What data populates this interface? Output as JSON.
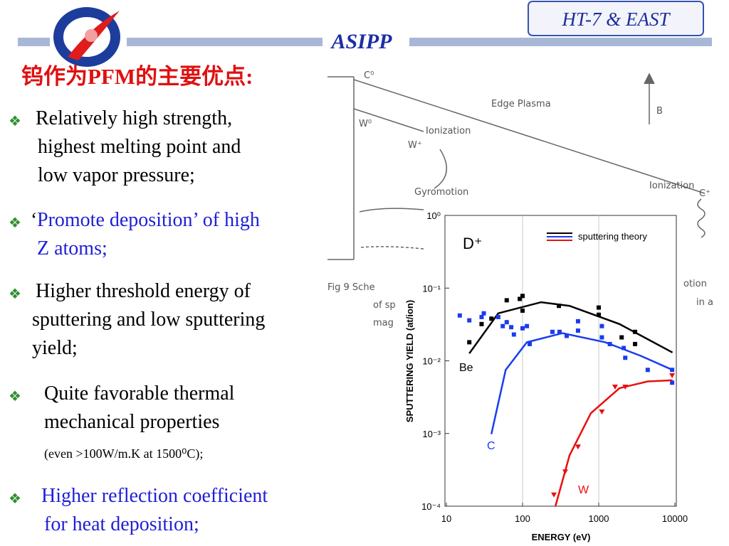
{
  "header": {
    "badge": "HT-7 & EAST",
    "title": "ASIPP",
    "heading": "钨作为PFM的主要优点:"
  },
  "bullets": [
    {
      "lines": [
        "Relatively high strength,",
        "highest melting point and",
        "low vapor pressure;"
      ],
      "color": "#000000"
    },
    {
      "prefix": "‘",
      "lines": [
        "Promote deposition’ of high",
        "Z atoms;"
      ],
      "color": "#1f1fd6"
    },
    {
      "lines": [
        "Higher  threshold energy of",
        "sputtering and low sputtering",
        "yield;"
      ],
      "color": "#000000"
    },
    {
      "lines": [
        "Quite favorable thermal",
        "mechanical properties"
      ],
      "note": "(even >100W/m.K at 1500⁰C);",
      "color": "#000000"
    },
    {
      "lines": [
        "Higher reflection coefficient",
        "for heat deposition;"
      ],
      "color": "#1f1fd6"
    }
  ],
  "background_figure": {
    "labels": [
      "C⁰",
      "W⁰",
      "Edge Plasma",
      "Ionization",
      "W⁺",
      "B",
      "Gyromotion",
      "Ionization",
      "C⁺",
      "Fig 9  Sche",
      "of sp",
      "mag",
      "otion",
      "in a"
    ]
  },
  "chart_data": {
    "type": "scatter",
    "title": "D⁺",
    "xlabel": "ENERGY (eV)",
    "ylabel": "SPUTTERING YIELD (at/ion)",
    "xlim": [
      10,
      10000
    ],
    "ylim": [
      0.0001,
      1
    ],
    "xscale": "log",
    "yscale": "log",
    "xticks": [
      10,
      100,
      1000,
      10000
    ],
    "yticks": [
      {
        "value": 1,
        "label": "10⁰"
      },
      {
        "value": 0.1,
        "label": "10⁻¹"
      },
      {
        "value": 0.01,
        "label": "10⁻²"
      },
      {
        "value": 0.001,
        "label": "10⁻³"
      },
      {
        "value": 0.0001,
        "label": "10⁻⁴"
      }
    ],
    "xgrid": true,
    "legend_label": "sputtering theory",
    "legend_position": "upper right",
    "series": [
      {
        "name": "Be",
        "color": "#000000",
        "marker": "square",
        "x": [
          20,
          29,
          39,
          62,
          92,
          100,
          100,
          300,
          1000,
          1000,
          2000,
          3000,
          3000
        ],
        "values": [
          0.018,
          0.032,
          0.038,
          0.068,
          0.071,
          0.078,
          0.049,
          0.057,
          0.054,
          0.043,
          0.021,
          0.025,
          0.017
        ],
        "theory_x": [
          20,
          48,
          175,
          414,
          1870,
          9300
        ],
        "theory_values": [
          0.0126,
          0.045,
          0.064,
          0.057,
          0.032,
          0.013
        ]
      },
      {
        "name": "C",
        "color": "#1a3cf0",
        "marker": "square",
        "x": [
          15,
          20,
          29,
          31,
          48,
          55,
          62,
          71,
          77,
          100,
          114,
          124,
          247,
          306,
          380,
          535,
          535,
          1100,
          1100,
          1400,
          2130,
          2230,
          4400,
          9200,
          9200
        ],
        "values": [
          0.042,
          0.036,
          0.04,
          0.045,
          0.04,
          0.03,
          0.034,
          0.029,
          0.023,
          0.028,
          0.03,
          0.017,
          0.025,
          0.025,
          0.022,
          0.035,
          0.026,
          0.03,
          0.021,
          0.017,
          0.015,
          0.011,
          0.0075,
          0.0075,
          0.005
        ],
        "theory_x": [
          39,
          60,
          114,
          335,
          1220,
          3560,
          9300
        ],
        "theory_values": [
          0.00098,
          0.0075,
          0.018,
          0.024,
          0.018,
          0.0117,
          0.0075
        ]
      },
      {
        "name": "W",
        "color": "#e81010",
        "marker": "triangle",
        "x": [
          258,
          363,
          535,
          1100,
          1640,
          2230,
          9200
        ],
        "values": [
          0.000144,
          0.0003,
          0.00066,
          0.002,
          0.0044,
          0.0044,
          0.0063
        ],
        "theory_x": [
          270,
          414,
          790,
          1870,
          4400,
          9300
        ],
        "theory_values": [
          0.0001,
          0.0005,
          0.0019,
          0.0042,
          0.0052,
          0.0054
        ]
      }
    ]
  }
}
